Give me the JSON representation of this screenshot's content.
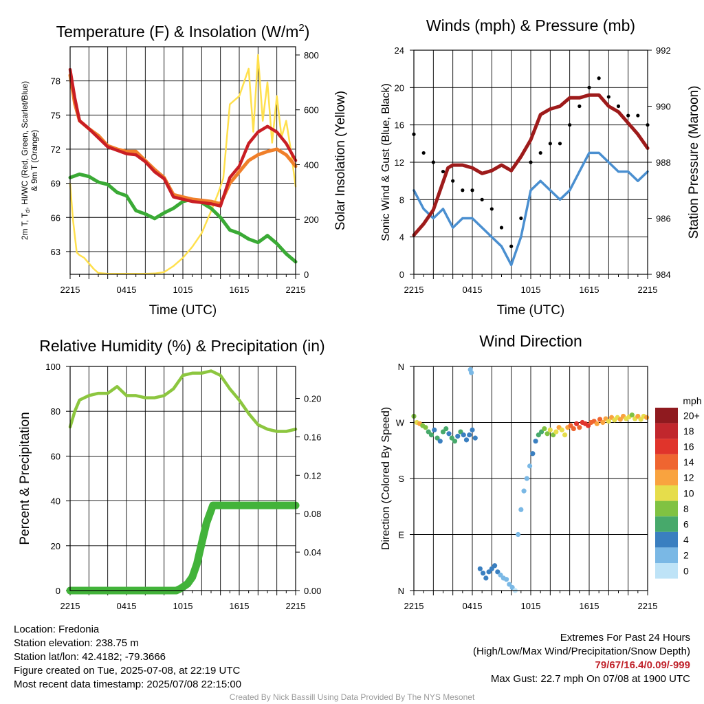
{
  "chart_data": [
    {
      "type": "line",
      "title": "Temperature (F) & Insolation (W/m",
      "title_sup": "2",
      "title_end": ")",
      "xlabel": "Time (UTC)",
      "ylabel_lines": [
        "2m T, T",
        "d",
        ", HI/WC (Red, Green, Scarlet/Blue)",
        "& 9m T (Orange)"
      ],
      "y2label": "Solar Insolation (Yellow)",
      "x_ticks": [
        "2215",
        "0415",
        "1015",
        "1615",
        "2215"
      ],
      "ylim": [
        61,
        81
      ],
      "y_ticks": [
        63,
        66,
        69,
        72,
        75,
        78
      ],
      "y2lim": [
        0,
        830
      ],
      "y2_ticks": [
        0,
        200,
        400,
        600,
        800
      ],
      "grid": true,
      "series": [
        {
          "color": "#f07f2a",
          "axis": "left",
          "x": [
            0,
            0.5,
            1,
            2,
            3,
            4,
            5,
            6,
            7,
            8,
            9,
            10,
            11,
            12,
            13,
            14,
            15,
            16,
            17,
            18,
            19,
            20,
            21,
            22,
            23,
            24
          ],
          "values": [
            78.5,
            76.0,
            74.5,
            73.8,
            73.2,
            72.3,
            72.0,
            71.8,
            71.8,
            71.0,
            70.2,
            69.5,
            68.0,
            67.8,
            67.6,
            67.5,
            67.4,
            67.2,
            69.0,
            70.0,
            71.0,
            71.5,
            71.8,
            72.0,
            71.5,
            70.5
          ]
        },
        {
          "color": "#c91e24",
          "axis": "left",
          "x": [
            0,
            0.5,
            1,
            2,
            3,
            4,
            5,
            6,
            7,
            8,
            9,
            10,
            11,
            12,
            13,
            14,
            15,
            16,
            17,
            18,
            19,
            20,
            21,
            22,
            23,
            24
          ],
          "values": [
            79.0,
            76.5,
            74.5,
            73.8,
            73.0,
            72.2,
            71.9,
            71.6,
            71.5,
            70.9,
            70.0,
            69.4,
            67.8,
            67.6,
            67.4,
            67.3,
            67.2,
            67.0,
            69.5,
            70.5,
            72.5,
            73.5,
            74.0,
            73.5,
            72.5,
            71.0
          ]
        },
        {
          "color": "#3aaa35",
          "axis": "left",
          "x": [
            0,
            1,
            2,
            3,
            4,
            5,
            6,
            7,
            8,
            9,
            10,
            11,
            12,
            13,
            14,
            15,
            16,
            17,
            18,
            19,
            20,
            21,
            22,
            23,
            24
          ],
          "values": [
            69.5,
            69.8,
            69.6,
            69.1,
            68.9,
            68.2,
            67.9,
            66.6,
            66.3,
            65.9,
            66.4,
            66.8,
            67.4,
            67.6,
            67.3,
            66.8,
            66.0,
            64.9,
            64.6,
            64.1,
            63.8,
            64.4,
            63.7,
            62.8,
            62.1
          ]
        },
        {
          "color": "#ffe04d",
          "axis": "right",
          "x": [
            0,
            0.3,
            0.7,
            1,
            1.5,
            2,
            2.5,
            3,
            4,
            5,
            6,
            7,
            8,
            9,
            10,
            11,
            12,
            13,
            14,
            15,
            15.8,
            16.3,
            17,
            18,
            19,
            19.5,
            20,
            20.5,
            21,
            21.5,
            22,
            22.5,
            23,
            23.5,
            24
          ],
          "values": [
            330,
            200,
            80,
            70,
            60,
            40,
            20,
            5,
            2,
            2,
            2,
            2,
            2,
            3,
            8,
            30,
            60,
            100,
            150,
            230,
            300,
            350,
            620,
            650,
            750,
            520,
            800,
            560,
            700,
            480,
            650,
            500,
            560,
            450,
            320
          ]
        }
      ]
    },
    {
      "type": "line",
      "title": "Winds (mph) & Pressure (mb)",
      "xlabel": "Time (UTC)",
      "ylabel": "Sonic Wind & Gust (Blue, Black)",
      "y2label": "Station Pressure (Maroon)",
      "x_ticks": [
        "2215",
        "0415",
        "1015",
        "1615",
        "2215"
      ],
      "ylim": [
        0,
        24
      ],
      "y_ticks": [
        0,
        4,
        8,
        12,
        16,
        20,
        24
      ],
      "y2lim": [
        984,
        992
      ],
      "y2_ticks": [
        984,
        986,
        988,
        990,
        992
      ],
      "grid": true,
      "series": [
        {
          "color": "#9e1b1b",
          "axis": "right",
          "x": [
            0,
            1,
            2,
            3,
            3.5,
            4,
            4.5,
            5,
            6,
            7,
            8,
            9,
            10,
            11,
            12,
            13,
            14,
            15,
            16,
            17,
            18,
            19,
            20,
            21,
            22,
            23,
            24
          ],
          "values": [
            985.4,
            985.8,
            986.3,
            987.3,
            987.8,
            987.9,
            987.9,
            987.9,
            987.8,
            987.6,
            987.7,
            987.9,
            987.7,
            988.2,
            988.8,
            989.7,
            989.9,
            990.0,
            990.3,
            990.3,
            990.4,
            990.4,
            990.0,
            989.8,
            989.4,
            989.0,
            988.5
          ]
        },
        {
          "color": "#4a8fd0",
          "axis": "left",
          "x": [
            0,
            1,
            2,
            3,
            4,
            5,
            6,
            7,
            8,
            9,
            10,
            11,
            12,
            13,
            14,
            15,
            16,
            17,
            18,
            19,
            20,
            21,
            22,
            23,
            24
          ],
          "values": [
            9,
            7,
            6,
            7,
            5,
            6,
            6,
            5,
            4,
            3,
            1,
            4,
            9,
            10,
            9,
            8,
            9,
            11,
            13,
            13,
            12,
            11,
            11,
            10,
            11
          ]
        },
        {
          "color": "#000000",
          "axis": "left",
          "x": [
            0,
            1,
            2,
            3,
            4,
            5,
            6,
            7,
            8,
            9,
            10,
            11,
            12,
            13,
            14,
            15,
            16,
            17,
            18,
            19,
            20,
            21,
            22,
            23,
            24
          ],
          "values": [
            15,
            13,
            12,
            11,
            10,
            9,
            9,
            8,
            7,
            5,
            3,
            6,
            12,
            13,
            14,
            14,
            16,
            18,
            20,
            21,
            19,
            18,
            17,
            17,
            16
          ]
        }
      ]
    },
    {
      "type": "line",
      "title": "Relative Humidity (%) & Precipitation (in)",
      "xlabel": "",
      "ylabel": "Percent & Precipitation",
      "x_ticks": [
        "2215",
        "0415",
        "1015",
        "1615",
        "2215"
      ],
      "ylim": [
        0,
        100
      ],
      "y_ticks": [
        0,
        20,
        40,
        60,
        80,
        100
      ],
      "y2lim": [
        0,
        0.2333
      ],
      "y2_ticks": [
        "0.00",
        "0.04",
        "0.08",
        "0.12",
        "0.16",
        "0.20"
      ],
      "grid": true,
      "series": [
        {
          "color": "#8cc63f",
          "axis": "left",
          "x": [
            0,
            0.5,
            1,
            2,
            3,
            4,
            5,
            6,
            7,
            8,
            9,
            10,
            11,
            12,
            13,
            14,
            15,
            16,
            17,
            18,
            19,
            20,
            21,
            22,
            23,
            24
          ],
          "values": [
            73,
            80,
            85,
            87,
            88,
            88,
            91,
            87,
            87,
            86,
            86,
            87,
            90,
            96,
            97,
            97,
            98,
            96,
            90,
            85,
            79,
            74,
            72,
            71,
            71,
            72
          ]
        },
        {
          "color": "#42b33a",
          "axis": "left",
          "x": [
            0,
            11.3,
            11.8,
            12.5,
            13,
            13.5,
            14,
            14.5,
            15.2,
            16,
            18,
            20,
            24
          ],
          "values": [
            0,
            0,
            1,
            3,
            6,
            12,
            21,
            30,
            38,
            38,
            38,
            38,
            38
          ]
        }
      ]
    },
    {
      "type": "scatter",
      "title": "Wind Direction",
      "xlabel": "",
      "ylabel": "Direction (Colored By Speed)",
      "x_ticks": [
        "2215",
        "0415",
        "1015",
        "1615",
        "2215"
      ],
      "y_ticks": [
        "N",
        "E",
        "S",
        "W",
        "N"
      ],
      "ylim": [
        0,
        360
      ],
      "grid": true,
      "legend_title": "mph",
      "colorbar_labels": [
        "20+",
        "18",
        "16",
        "14",
        "12",
        "10",
        "8",
        "6",
        "4",
        "2",
        "0"
      ],
      "colorbar_colors": [
        "#8f1a1f",
        "#c1272d",
        "#e0342b",
        "#ef6530",
        "#f9a33f",
        "#e6dd4b",
        "#80c242",
        "#47a96b",
        "#3a7fc0",
        "#7ab8e5",
        "#bee3f7"
      ],
      "points": [
        [
          0.0,
          280,
          8
        ],
        [
          0.3,
          270,
          10
        ],
        [
          0.6,
          268,
          12
        ],
        [
          0.9,
          265,
          9
        ],
        [
          1.2,
          262,
          8
        ],
        [
          1.5,
          255,
          7
        ],
        [
          1.8,
          250,
          6
        ],
        [
          2.1,
          258,
          5
        ],
        [
          2.4,
          245,
          6
        ],
        [
          2.7,
          240,
          5
        ],
        [
          3.0,
          255,
          6
        ],
        [
          3.3,
          260,
          7
        ],
        [
          3.6,
          252,
          5
        ],
        [
          3.9,
          245,
          6
        ],
        [
          4.2,
          240,
          7
        ],
        [
          4.5,
          248,
          5
        ],
        [
          4.8,
          255,
          6
        ],
        [
          5.1,
          250,
          5
        ],
        [
          5.4,
          242,
          4
        ],
        [
          5.7,
          250,
          5
        ],
        [
          6.0,
          258,
          4
        ],
        [
          6.3,
          245,
          5
        ],
        [
          5.8,
          355,
          3
        ],
        [
          5.9,
          350,
          3
        ],
        [
          6.8,
          35,
          4
        ],
        [
          7.1,
          28,
          5
        ],
        [
          7.4,
          20,
          4
        ],
        [
          7.7,
          30,
          5
        ],
        [
          8.0,
          35,
          4
        ],
        [
          8.3,
          40,
          5
        ],
        [
          8.6,
          30,
          4
        ],
        [
          8.9,
          25,
          3
        ],
        [
          9.2,
          20,
          3
        ],
        [
          9.5,
          18,
          2
        ],
        [
          9.8,
          10,
          2
        ],
        [
          10.1,
          5,
          2
        ],
        [
          10.4,
          0,
          1
        ],
        [
          10.7,
          90,
          2
        ],
        [
          11.0,
          130,
          2
        ],
        [
          11.3,
          160,
          2
        ],
        [
          11.6,
          180,
          2
        ],
        [
          11.9,
          200,
          3
        ],
        [
          12.2,
          220,
          4
        ],
        [
          12.5,
          240,
          5
        ],
        [
          12.8,
          250,
          6
        ],
        [
          13.1,
          255,
          7
        ],
        [
          13.4,
          260,
          8
        ],
        [
          13.7,
          252,
          9
        ],
        [
          14.0,
          258,
          10
        ],
        [
          14.3,
          250,
          9
        ],
        [
          14.6,
          255,
          10
        ],
        [
          14.9,
          262,
          12
        ],
        [
          15.2,
          258,
          11
        ],
        [
          15.5,
          250,
          10
        ],
        [
          15.8,
          262,
          13
        ],
        [
          16.1,
          265,
          14
        ],
        [
          16.4,
          260,
          15
        ],
        [
          16.7,
          268,
          16
        ],
        [
          17.0,
          262,
          15
        ],
        [
          17.3,
          270,
          16
        ],
        [
          17.6,
          268,
          17
        ],
        [
          17.9,
          265,
          16
        ],
        [
          18.2,
          270,
          15
        ],
        [
          18.5,
          272,
          14
        ],
        [
          18.8,
          268,
          13
        ],
        [
          19.1,
          275,
          15
        ],
        [
          19.4,
          270,
          12
        ],
        [
          19.7,
          276,
          13
        ],
        [
          20.0,
          272,
          11
        ],
        [
          20.3,
          278,
          12
        ],
        [
          20.6,
          274,
          11
        ],
        [
          20.9,
          278,
          10
        ],
        [
          21.2,
          275,
          12
        ],
        [
          21.5,
          280,
          13
        ],
        [
          21.8,
          276,
          11
        ],
        [
          22.1,
          279,
          10
        ],
        [
          22.4,
          282,
          9
        ],
        [
          22.7,
          276,
          10
        ],
        [
          23.0,
          280,
          12
        ],
        [
          23.3,
          275,
          11
        ],
        [
          23.6,
          280,
          10
        ],
        [
          23.9,
          278,
          12
        ]
      ]
    }
  ],
  "info_left": [
    "Location: Fredonia",
    "Station elevation: 238.75 m",
    "Station lat/lon: 42.4182; -79.3666",
    "Figure created on Tue, 2025-07-08, at 22:19 UTC",
    "Most recent data timestamp: 2025/07/08 22:15:00"
  ],
  "info_right": {
    "line1": "Extremes For Past 24 Hours",
    "line2": "(High/Low/Max Wind/Precipitation/Snow Depth)",
    "extremes": "79/67/16.4/0.09/-999",
    "gust": "Max Gust: 22.7 mph On 07/08 at 1900 UTC"
  },
  "credit": "Created By Nick Bassill Using Data Provided By The NYS Mesonet"
}
